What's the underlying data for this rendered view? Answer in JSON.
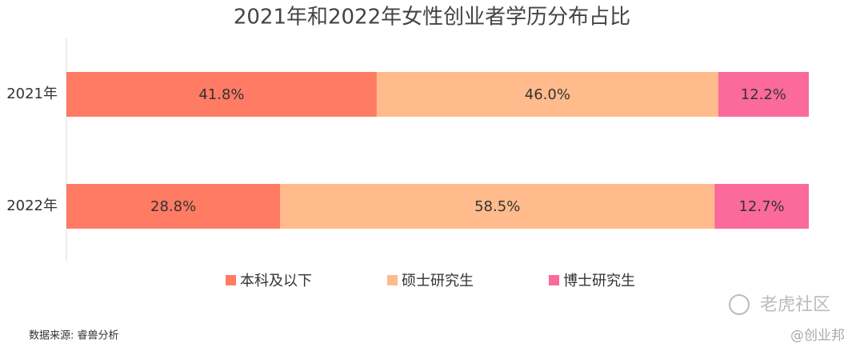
{
  "chart_data": {
    "type": "stacked-bar-horizontal",
    "title": "2021年和2022年女性创业者学历分布占比",
    "categories": [
      "2021年",
      "2022年"
    ],
    "xlim": [
      0,
      100
    ],
    "series": [
      {
        "name": "本科及以下",
        "color": "#ff7b63",
        "values": [
          41.8,
          28.8
        ],
        "value_labels": [
          "41.8%",
          "28.8%"
        ]
      },
      {
        "name": "硕士研究生",
        "color": "#ffbb8c",
        "values": [
          46.0,
          58.5
        ],
        "value_labels": [
          "46.0%",
          "58.5%"
        ]
      },
      {
        "name": "博士研究生",
        "color": "#fb6a9a",
        "values": [
          12.2,
          12.7
        ],
        "value_labels": [
          "12.2%",
          "12.7%"
        ]
      }
    ],
    "source": "数据来源: 睿兽分析",
    "watermarks": [
      "老虎社区",
      "@创业邦"
    ]
  }
}
